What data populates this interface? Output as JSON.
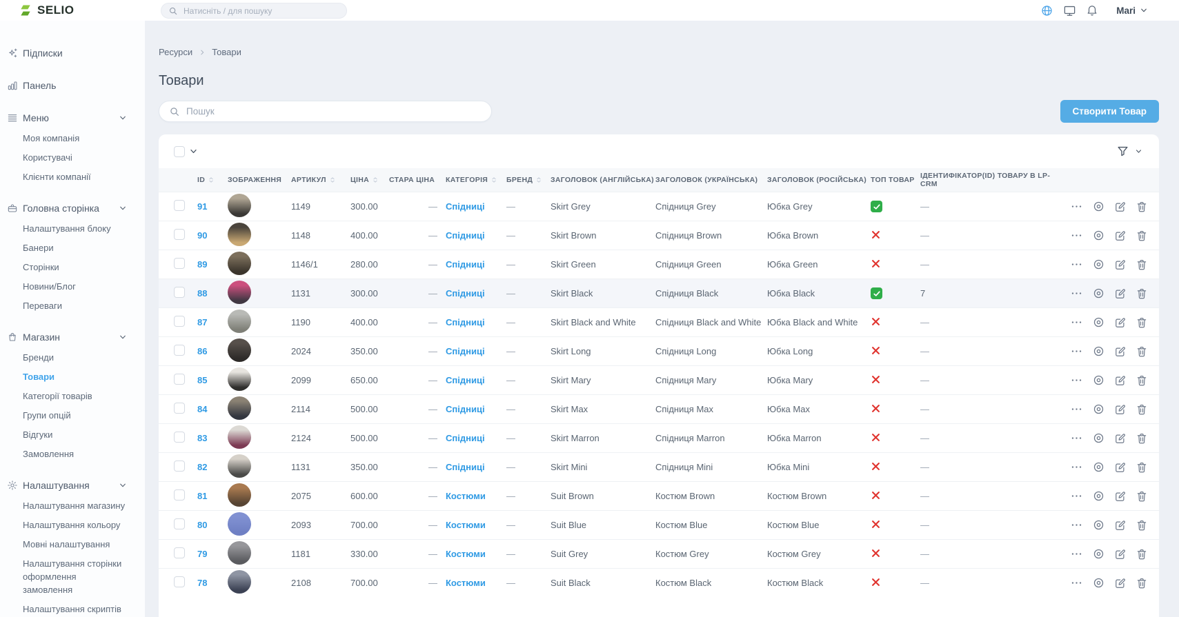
{
  "topbar": {
    "logo": "SELIO",
    "search_placeholder": "Натисніть / для пошуку",
    "user": {
      "name": "Mari"
    }
  },
  "sidebar": {
    "groups": [
      {
        "icon": "sparkles-icon",
        "label": "Підписки"
      },
      {
        "icon": "bar-chart-icon",
        "label": "Панель"
      },
      {
        "icon": "menu-lines-icon",
        "label": "Меню",
        "expanded": true,
        "children": [
          {
            "label": "Моя компанія"
          },
          {
            "label": "Користувачі"
          },
          {
            "label": "Клієнти компанії"
          }
        ]
      },
      {
        "icon": "box-icon",
        "label": "Головна сторінка",
        "expanded": true,
        "children": [
          {
            "label": "Налаштування блоку"
          },
          {
            "label": "Банери"
          },
          {
            "label": "Сторінки"
          },
          {
            "label": "Новини/Блог"
          },
          {
            "label": "Переваги"
          }
        ]
      },
      {
        "icon": "bag-icon",
        "label": "Магазин",
        "expanded": true,
        "children": [
          {
            "label": "Бренди"
          },
          {
            "label": "Товари",
            "active": true
          },
          {
            "label": "Категорії товарів"
          },
          {
            "label": "Групи опцій"
          },
          {
            "label": "Відгуки"
          },
          {
            "label": "Замовлення"
          }
        ]
      },
      {
        "icon": "gear-icon",
        "label": "Налаштування",
        "expanded": true,
        "children": [
          {
            "label": "Налаштування магазину"
          },
          {
            "label": "Налаштування кольору"
          },
          {
            "label": "Мовні налаштування"
          },
          {
            "label": "Налаштування сторінки оформлення замовлення"
          },
          {
            "label": "Налаштування скриптів"
          }
        ]
      }
    ]
  },
  "breadcrumb": [
    "Ресурси",
    "Товари"
  ],
  "page": {
    "title": "Товари",
    "search_placeholder": "Пошук",
    "create_button_label": "Створити Товар"
  },
  "table": {
    "columns": [
      {
        "label": "ID",
        "sortable": true
      },
      {
        "label": "ЗОБРАЖЕННЯ",
        "sortable": false
      },
      {
        "label": "АРТИКУЛ",
        "sortable": true
      },
      {
        "label": "ЦІНА",
        "sortable": true
      },
      {
        "label": "СТАРА ЦІНА",
        "sortable": false
      },
      {
        "label": "КАТЕГОРІЯ",
        "sortable": true
      },
      {
        "label": "БРЕНД",
        "sortable": true
      },
      {
        "label": "ЗАГОЛОВОК (АНГЛІЙСЬКА)",
        "sortable": false
      },
      {
        "label": "ЗАГОЛОВОК (УКРАЇНСЬКА)",
        "sortable": false
      },
      {
        "label": "ЗАГОЛОВОК (РОСІЙСЬКА)",
        "sortable": false
      },
      {
        "label": "ТОП ТОВАР",
        "sortable": false
      },
      {
        "label": "ІДЕНТИФІКАТОР(ID) ТОВАРУ В LP-CRM",
        "sortable": false
      }
    ],
    "rows": [
      {
        "id": "91",
        "article": "1149",
        "price": "300.00",
        "old_price": "—",
        "category": "Спідниці",
        "brand": "—",
        "title_en": "Skirt Grey",
        "title_uk": "Спідниця Grey",
        "title_ru": "Юбка Grey",
        "top": true,
        "lp_crm_id": "—",
        "highlighted": false,
        "thumb": [
          "#b0a694",
          "#3a3835"
        ]
      },
      {
        "id": "90",
        "article": "1148",
        "price": "400.00",
        "old_price": "—",
        "category": "Спідниці",
        "brand": "—",
        "title_en": "Skirt Brown",
        "title_uk": "Спідниця Brown",
        "title_ru": "Юбка Brown",
        "top": false,
        "lp_crm_id": "—",
        "highlighted": false,
        "thumb": [
          "#4a443c",
          "#c9a873"
        ]
      },
      {
        "id": "89",
        "article": "1146/1",
        "price": "280.00",
        "old_price": "—",
        "category": "Спідниці",
        "brand": "—",
        "title_en": "Skirt Green",
        "title_uk": "Спідниця Green",
        "title_ru": "Юбка Green",
        "top": false,
        "lp_crm_id": "—",
        "highlighted": false,
        "thumb": [
          "#7c6f5c",
          "#3b352c"
        ]
      },
      {
        "id": "88",
        "article": "1131",
        "price": "300.00",
        "old_price": "—",
        "category": "Спідниці",
        "brand": "—",
        "title_en": "Skirt Black",
        "title_uk": "Спідниця Black",
        "title_ru": "Юбка Black",
        "top": true,
        "lp_crm_id": "7",
        "highlighted": true,
        "thumb": [
          "#cc4f7e",
          "#413843"
        ]
      },
      {
        "id": "87",
        "article": "1190",
        "price": "400.00",
        "old_price": "—",
        "category": "Спідниці",
        "brand": "—",
        "title_en": "Skirt Black and White",
        "title_uk": "Спідниця Black and White",
        "title_ru": "Юбка Black and White",
        "top": false,
        "lp_crm_id": "—",
        "highlighted": false,
        "thumb": [
          "#b9bab6",
          "#7f8078"
        ]
      },
      {
        "id": "86",
        "article": "2024",
        "price": "350.00",
        "old_price": "—",
        "category": "Спідниці",
        "brand": "—",
        "title_en": "Skirt Long",
        "title_uk": "Спідниця Long",
        "title_ru": "Юбка Long",
        "top": false,
        "lp_crm_id": "—",
        "highlighted": false,
        "thumb": [
          "#57504b",
          "#2e2b29"
        ]
      },
      {
        "id": "85",
        "article": "2099",
        "price": "650.00",
        "old_price": "—",
        "category": "Спідниці",
        "brand": "—",
        "title_en": "Skirt Mary",
        "title_uk": "Спідниця Mary",
        "title_ru": "Юбка Mary",
        "top": false,
        "lp_crm_id": "—",
        "highlighted": false,
        "thumb": [
          "#e7e4df",
          "#2f2e2c"
        ]
      },
      {
        "id": "84",
        "article": "2114",
        "price": "500.00",
        "old_price": "—",
        "category": "Спідниці",
        "brand": "—",
        "title_en": "Skirt Max",
        "title_uk": "Спідниця Max",
        "title_ru": "Юбка Max",
        "top": false,
        "lp_crm_id": "—",
        "highlighted": false,
        "thumb": [
          "#8b8274",
          "#33363f"
        ]
      },
      {
        "id": "83",
        "article": "2124",
        "price": "500.00",
        "old_price": "—",
        "category": "Спідниці",
        "brand": "—",
        "title_en": "Skirt Marron",
        "title_uk": "Спідниця Marron",
        "title_ru": "Юбка Marron",
        "top": false,
        "lp_crm_id": "—",
        "highlighted": false,
        "thumb": [
          "#dcd9d4",
          "#7c3a53"
        ]
      },
      {
        "id": "82",
        "article": "1131",
        "price": "350.00",
        "old_price": "—",
        "category": "Спідниці",
        "brand": "—",
        "title_en": "Skirt Mini",
        "title_uk": "Спідниця Mini",
        "title_ru": "Юбка Mini",
        "top": false,
        "lp_crm_id": "—",
        "highlighted": false,
        "thumb": [
          "#d6d1c9",
          "#4a4a48"
        ]
      },
      {
        "id": "81",
        "article": "2075",
        "price": "600.00",
        "old_price": "—",
        "category": "Костюми",
        "brand": "—",
        "title_en": "Suit Brown",
        "title_uk": "Костюм Brown",
        "title_ru": "Костюм Brown",
        "top": false,
        "lp_crm_id": "—",
        "highlighted": false,
        "thumb": [
          "#a97a50",
          "#574433"
        ]
      },
      {
        "id": "80",
        "article": "2093",
        "price": "700.00",
        "old_price": "—",
        "category": "Костюми",
        "brand": "—",
        "title_en": "Suit Blue",
        "title_uk": "Костюм Blue",
        "title_ru": "Костюм Blue",
        "top": false,
        "lp_crm_id": "—",
        "highlighted": false,
        "thumb": [
          "#8191d2",
          "#6f80c4"
        ]
      },
      {
        "id": "79",
        "article": "1181",
        "price": "330.00",
        "old_price": "—",
        "category": "Костюми",
        "brand": "—",
        "title_en": "Suit Grey",
        "title_uk": "Костюм Grey",
        "title_ru": "Костюм Grey",
        "top": false,
        "lp_crm_id": "—",
        "highlighted": false,
        "thumb": [
          "#97979b",
          "#5a5b5f"
        ]
      },
      {
        "id": "78",
        "article": "2108",
        "price": "700.00",
        "old_price": "—",
        "category": "Костюми",
        "brand": "—",
        "title_en": "Suit Black",
        "title_uk": "Костюм Black",
        "title_ru": "Костюм Black",
        "top": false,
        "lp_crm_id": "—",
        "highlighted": false,
        "thumb": [
          "#8f95a3",
          "#3c4254"
        ]
      }
    ]
  },
  "colors": {
    "accent_blue": "#4aa3e8",
    "button_blue": "#55ace5",
    "link_blue": "#2f9ae4",
    "success_green": "#2fae49",
    "danger_red": "#e0342f",
    "logo_green": "#8dc63f"
  }
}
